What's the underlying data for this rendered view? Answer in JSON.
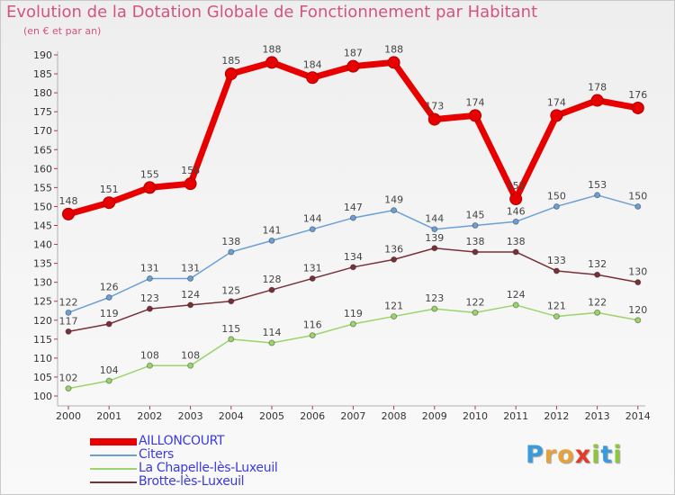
{
  "chart_data": {
    "type": "line",
    "title": "Evolution de la Dotation Globale de Fonctionnement par Habitant",
    "subtitle": "(en € et par an)",
    "xlabel": "",
    "ylabel": "",
    "categories": [
      "2000",
      "2001",
      "2002",
      "2003",
      "2004",
      "2005",
      "2006",
      "2007",
      "2008",
      "2009",
      "2010",
      "2011",
      "2012",
      "2013",
      "2014"
    ],
    "ylim": [
      100,
      190
    ],
    "yticks": [
      100,
      105,
      110,
      115,
      120,
      125,
      130,
      135,
      140,
      145,
      150,
      155,
      160,
      165,
      170,
      175,
      180,
      185,
      190
    ],
    "grid": false,
    "legend_position": "bottom-left",
    "series": [
      {
        "name": "AILLONCOURT",
        "color": "#e80000",
        "values": [
          148,
          151,
          155,
          156,
          185,
          188,
          184,
          187,
          188,
          173,
          174,
          152,
          174,
          178,
          176
        ]
      },
      {
        "name": "Citers",
        "color": "#6ca0d4",
        "values": [
          122,
          126,
          131,
          131,
          138,
          141,
          144,
          147,
          149,
          144,
          145,
          146,
          150,
          153,
          150
        ]
      },
      {
        "name": "La Chapelle-lès-Luxeuil",
        "color": "#9ad46a",
        "values": [
          102,
          104,
          108,
          108,
          115,
          114,
          116,
          119,
          121,
          123,
          122,
          124,
          121,
          122,
          120
        ]
      },
      {
        "name": "Brotte-lès-Luxeuil",
        "color": "#7a3038",
        "values": [
          117,
          119,
          123,
          124,
          125,
          128,
          131,
          134,
          136,
          139,
          138,
          138,
          133,
          132,
          130
        ]
      }
    ]
  },
  "brand": {
    "letters": [
      "P",
      "r",
      "o",
      "x",
      "i",
      "t",
      "i"
    ],
    "colors": [
      "#3b9ad9",
      "#e6a23a",
      "#e6a23a",
      "#e23b2a",
      "#8cc63f",
      "#3b9ad9",
      "#8cc63f"
    ]
  }
}
